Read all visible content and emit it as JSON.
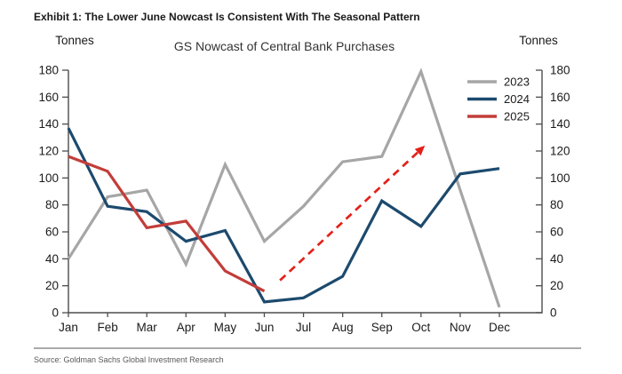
{
  "exhibit_title": "Exhibit 1: The Lower June Nowcast Is Consistent With The Seasonal Pattern",
  "source_note": "Source: Goldman Sachs Global Investment Research",
  "chart_data": {
    "type": "line",
    "title": "GS Nowcast of Central Bank Purchases",
    "left_axis_label": "Tonnes",
    "right_axis_label": "Tonnes",
    "categories": [
      "Jan",
      "Feb",
      "Mar",
      "Apr",
      "May",
      "Jun",
      "Jul",
      "Aug",
      "Sep",
      "Oct",
      "Nov",
      "Dec"
    ],
    "ylim": [
      0,
      180
    ],
    "yticks": [
      0,
      20,
      40,
      60,
      80,
      100,
      120,
      140,
      160,
      180
    ],
    "grid": false,
    "legend_position": "upper right",
    "series": [
      {
        "name": "2023",
        "color": "#a6a6a6",
        "values": [
          40,
          86,
          91,
          36,
          110,
          53,
          79,
          112,
          116,
          179,
          91,
          4
        ]
      },
      {
        "name": "2024",
        "color": "#1c4a6e",
        "values": [
          137,
          79,
          75,
          53,
          61,
          8,
          11,
          27,
          83,
          64,
          103,
          107
        ]
      },
      {
        "name": "2025",
        "color": "#c23d39",
        "values": [
          116,
          105,
          63,
          68,
          31,
          16
        ]
      }
    ],
    "annotation": {
      "type": "dashed_arrow",
      "color": "#e32119",
      "from": {
        "month_index": 5.4,
        "value": 24
      },
      "to": {
        "month_index": 9.1,
        "value": 124
      }
    }
  }
}
